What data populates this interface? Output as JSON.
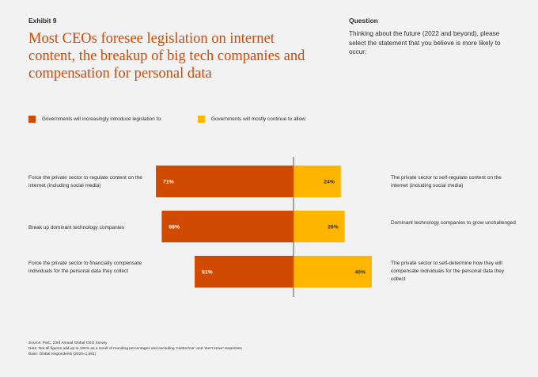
{
  "exhibit": "Exhibit 9",
  "title": "Most CEOs foresee legislation on internet content, the breakup of big tech companies and compensation for personal data",
  "question": {
    "label": "Question",
    "text": "Thinking about the future (2022 and beyond), please select the statement that you believe is more likely to occur:"
  },
  "colors": {
    "left": "#d04a02",
    "right": "#ffb600",
    "axis": "#2d2d2d"
  },
  "chart_data": {
    "type": "bar",
    "orientation": "horizontal-diverging",
    "legend": [
      {
        "name": "Governments will increasingly introduce legislation to:",
        "color": "#d04a02"
      },
      {
        "name": "Governments will mostly continue to allow:",
        "color": "#ffb600"
      }
    ],
    "rows": [
      {
        "left_label": "Force the private sector to regulate content on the internet (including social media)",
        "right_label": "The private sector to self-regulate content on the internet (including social media)",
        "left_value": 71,
        "left_text": "71%",
        "right_value": 24,
        "right_text": "24%"
      },
      {
        "left_label": "Break up dominant technology companies",
        "right_label": "Dominant technology companies to grow unchallenged",
        "left_value": 68,
        "left_text": "68%",
        "right_value": 26,
        "right_text": "26%"
      },
      {
        "left_label": "Force the private sector to financially compensate individuals for the personal data they collect",
        "right_label": "The private sector to self-determine how they will compensate individuals for the personal data they collect",
        "left_value": 51,
        "left_text": "51%",
        "right_value": 40,
        "right_text": "40%"
      }
    ],
    "unit": "%"
  },
  "footnotes": [
    "Source: PwC, 23rd Annual Global CEO Survey",
    "Note: Not all figures add up to 100% as a result of rounding percentages and excluding ‘neither/nor’ and ‘don’t know’ responses",
    "Base: Global respondents (2020=1,581)"
  ]
}
